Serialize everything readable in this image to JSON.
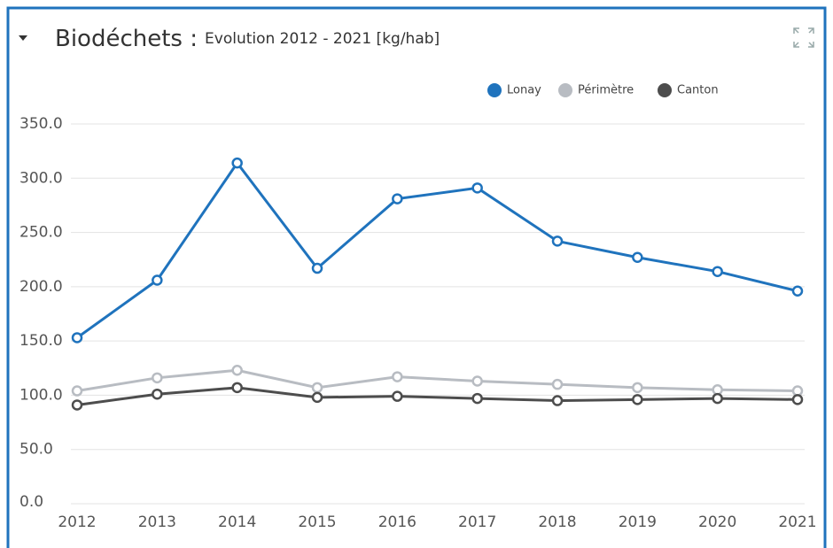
{
  "chart_data": {
    "type": "line",
    "title": "Biodéchets :",
    "subtitle": "Evolution 2012 - 2021 [kg/hab]",
    "x": [
      2012,
      2013,
      2014,
      2015,
      2016,
      2017,
      2018,
      2019,
      2020,
      2021
    ],
    "xlim": [
      2012,
      2021
    ],
    "xticks": [
      2012,
      2013,
      2014,
      2015,
      2016,
      2017,
      2018,
      2019,
      2020,
      2021
    ],
    "ylim": [
      0,
      350
    ],
    "yticks": [
      {
        "value": 0,
        "label": "0.0"
      },
      {
        "value": 50,
        "label": "50.0"
      },
      {
        "value": 100,
        "label": "100.0"
      },
      {
        "value": 150,
        "label": "150.0"
      },
      {
        "value": 200,
        "label": "200.0"
      },
      {
        "value": 250,
        "label": "250.0"
      },
      {
        "value": 300,
        "label": "300.0"
      },
      {
        "value": 350,
        "label": "350.0"
      }
    ],
    "grid": true,
    "legend": "top-right",
    "series": [
      {
        "name": "Lonay",
        "color": "#1f73bd",
        "values": [
          153,
          206,
          314,
          217,
          281,
          291,
          242,
          227,
          214,
          196
        ]
      },
      {
        "name": "Périmètre",
        "color": "#b8bcc2",
        "values": [
          104,
          116,
          123,
          107,
          117,
          113,
          110,
          107,
          105,
          104
        ]
      },
      {
        "name": "Canton",
        "color": "#4d4d4d",
        "values": [
          91,
          101,
          107,
          98,
          99,
          97,
          95,
          96,
          97,
          96
        ]
      }
    ]
  }
}
